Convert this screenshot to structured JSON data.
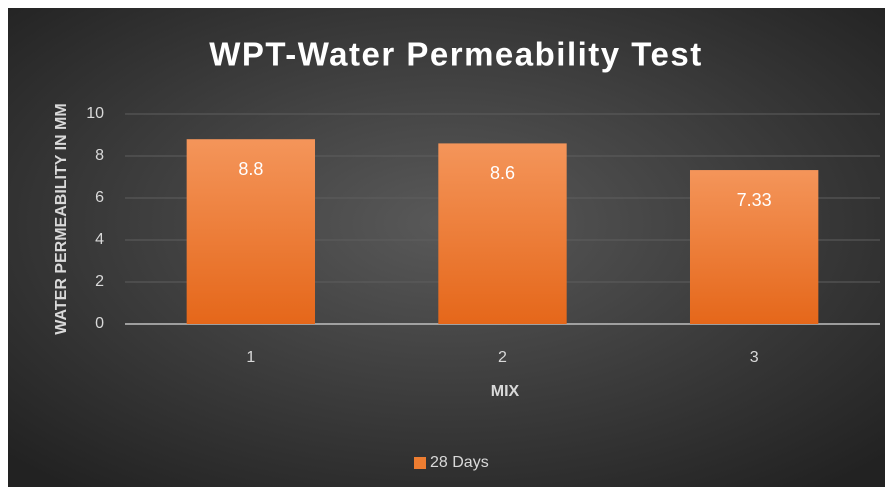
{
  "chart_data": {
    "type": "bar",
    "title": "WPT-Water Permeability Test",
    "x_label": "MIX",
    "y_label": "WATER PERMEABILITY IN MM",
    "categories": [
      "1",
      "2",
      "3"
    ],
    "series": [
      {
        "name": "28 Days",
        "color": "#ed7d31",
        "values": [
          8.8,
          8.6,
          7.33
        ]
      }
    ],
    "ylim": [
      0,
      10
    ],
    "yticks": [
      0,
      2,
      4,
      6,
      8,
      10
    ],
    "grid": true,
    "legend": "bottom"
  }
}
